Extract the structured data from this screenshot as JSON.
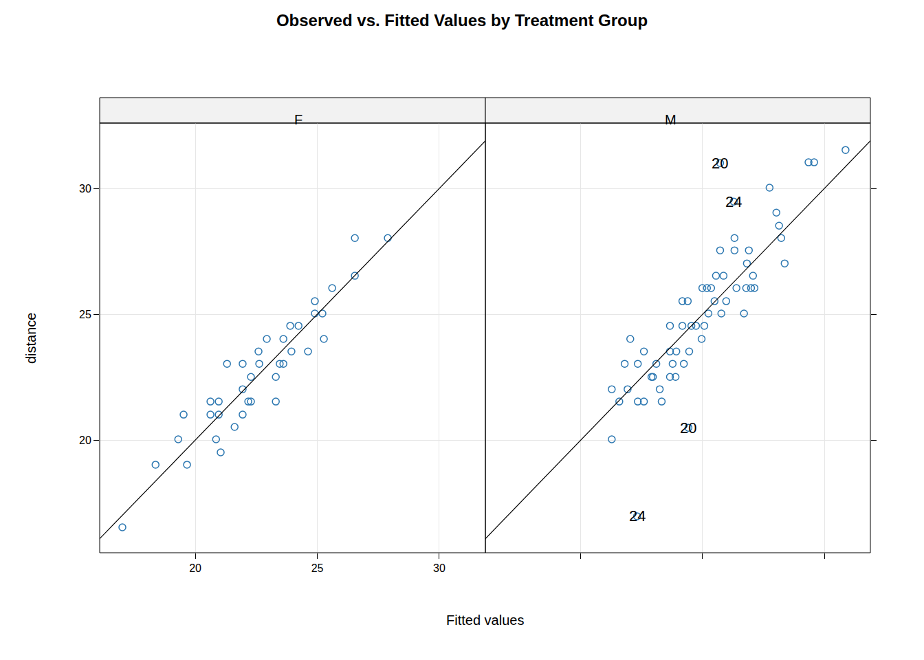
{
  "chart_data": {
    "type": "scatter",
    "title": "Observed vs. Fitted Values by Treatment Group",
    "x_label": "Fitted values",
    "y_label": "distance",
    "xlim": [
      16.08,
      31.89
    ],
    "ylim": [
      15.52,
      32.6
    ],
    "xticks": [
      20,
      25,
      30
    ],
    "yticks": [
      20,
      25,
      30
    ],
    "grid": true,
    "marker": "circle-open",
    "color": "#2a76b0",
    "panels": [
      {
        "title": "F",
        "series": [
          {
            "type": "scatter",
            "x": [
              17.01,
              18.37,
              19.3,
              19.52,
              19.66,
              20.62,
              20.62,
              20.85,
              20.96,
              20.96,
              21.04,
              21.3,
              21.61,
              21.94,
              21.94,
              21.94,
              22.17,
              22.28,
              22.28,
              22.59,
              22.62,
              22.93,
              23.3,
              23.3,
              23.46,
              23.61,
              23.61,
              23.89,
              23.94,
              24.23,
              24.62,
              24.9,
              24.9,
              25.21,
              25.27,
              25.61,
              26.54,
              26.54,
              27.89
            ],
            "values": [
              16.53,
              19.02,
              20.03,
              21.01,
              19.02,
              21.53,
              21.01,
              20.03,
              21.53,
              21.01,
              19.51,
              23.03,
              20.52,
              22.02,
              23.03,
              21.01,
              21.53,
              22.51,
              21.53,
              23.52,
              23.03,
              24.02,
              22.51,
              21.53,
              23.03,
              23.03,
              24.02,
              24.54,
              23.52,
              24.54,
              23.52,
              25.52,
              25.03,
              25.03,
              24.02,
              26.04,
              26.53,
              28.03,
              28.03
            ]
          },
          {
            "type": "line",
            "color": "#000000",
            "x": [
              15,
              33
            ],
            "values": [
              15,
              33
            ]
          }
        ],
        "annotations": []
      },
      {
        "title": "M",
        "series": [
          {
            "type": "scatter",
            "x": [
              21.27,
              21.27,
              21.58,
              21.8,
              21.92,
              22.03,
              22.34,
              22.34,
              22.59,
              22.59,
              22.9,
              22.96,
              23.1,
              23.24,
              23.32,
              23.66,
              23.66,
              23.66,
              23.77,
              23.89,
              23.92,
              24.17,
              24.17,
              24.23,
              24.39,
              24.45,
              24.54,
              24.73,
              24.96,
              24.99,
              25.07,
              25.18,
              25.24,
              25.35,
              25.49,
              25.55,
              25.72,
              25.77,
              25.86,
              25.97,
              26.31,
              26.31,
              26.39,
              26.7,
              26.79,
              26.82,
              26.9,
              26.99,
              27.07,
              27.13,
              27.75,
              28.03,
              28.14,
              28.23,
              28.37,
              29.35,
              29.58,
              30.87,
              25.72,
              26.28,
              24.42,
              22.31
            ],
            "values": [
              22.02,
              20.03,
              21.53,
              23.03,
              22.02,
              24.02,
              23.03,
              21.53,
              23.52,
              21.53,
              22.51,
              22.51,
              23.03,
              22.02,
              21.53,
              24.54,
              23.52,
              22.51,
              23.03,
              22.51,
              23.52,
              25.52,
              24.54,
              23.03,
              25.52,
              23.52,
              24.54,
              24.54,
              24.02,
              26.04,
              24.54,
              26.04,
              25.03,
              26.04,
              25.52,
              26.53,
              27.54,
              25.03,
              26.53,
              25.52,
              28.03,
              27.54,
              26.04,
              25.03,
              26.04,
              27.02,
              27.54,
              26.04,
              26.53,
              26.04,
              30.03,
              29.04,
              28.52,
              28.03,
              27.02,
              31.04,
              31.04,
              31.53,
              31.01,
              29.48,
              20.49,
              16.97
            ]
          },
          {
            "type": "line",
            "color": "#000000",
            "x": [
              15,
              33
            ],
            "values": [
              15,
              33
            ]
          }
        ],
        "annotations": [
          {
            "x": 25.72,
            "y": 31.01,
            "text": "20"
          },
          {
            "x": 26.28,
            "y": 29.48,
            "text": "24"
          },
          {
            "x": 24.42,
            "y": 20.49,
            "text": "20"
          },
          {
            "x": 22.31,
            "y": 16.97,
            "text": "24"
          }
        ]
      }
    ]
  }
}
